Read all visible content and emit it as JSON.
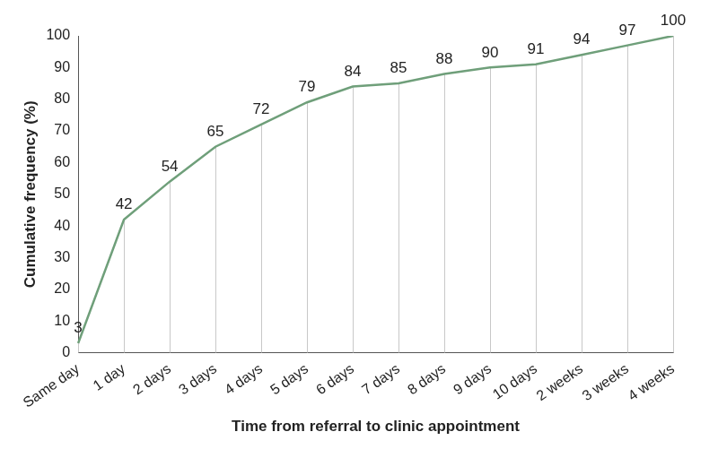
{
  "chart_data": {
    "type": "line",
    "x_label": "Time from referral to clinic appointment",
    "y_label": "Cumulative frequency (%)",
    "categories": [
      "Same day",
      "1 day",
      "2 days",
      "3 days",
      "4 days",
      "5 days",
      "6 days",
      "7 days",
      "8 days",
      "9 days",
      "10 days",
      "2 weeks",
      "3 weeks",
      "4 weeks"
    ],
    "values": [
      3,
      42,
      54,
      65,
      72,
      79,
      84,
      85,
      88,
      90,
      91,
      94,
      97,
      100
    ],
    "color": "#6f9f7a",
    "ylim": [
      0,
      100
    ],
    "yticks": [
      0,
      10,
      20,
      30,
      40,
      50,
      60,
      70,
      80,
      90,
      100
    ],
    "data_labels": true
  }
}
